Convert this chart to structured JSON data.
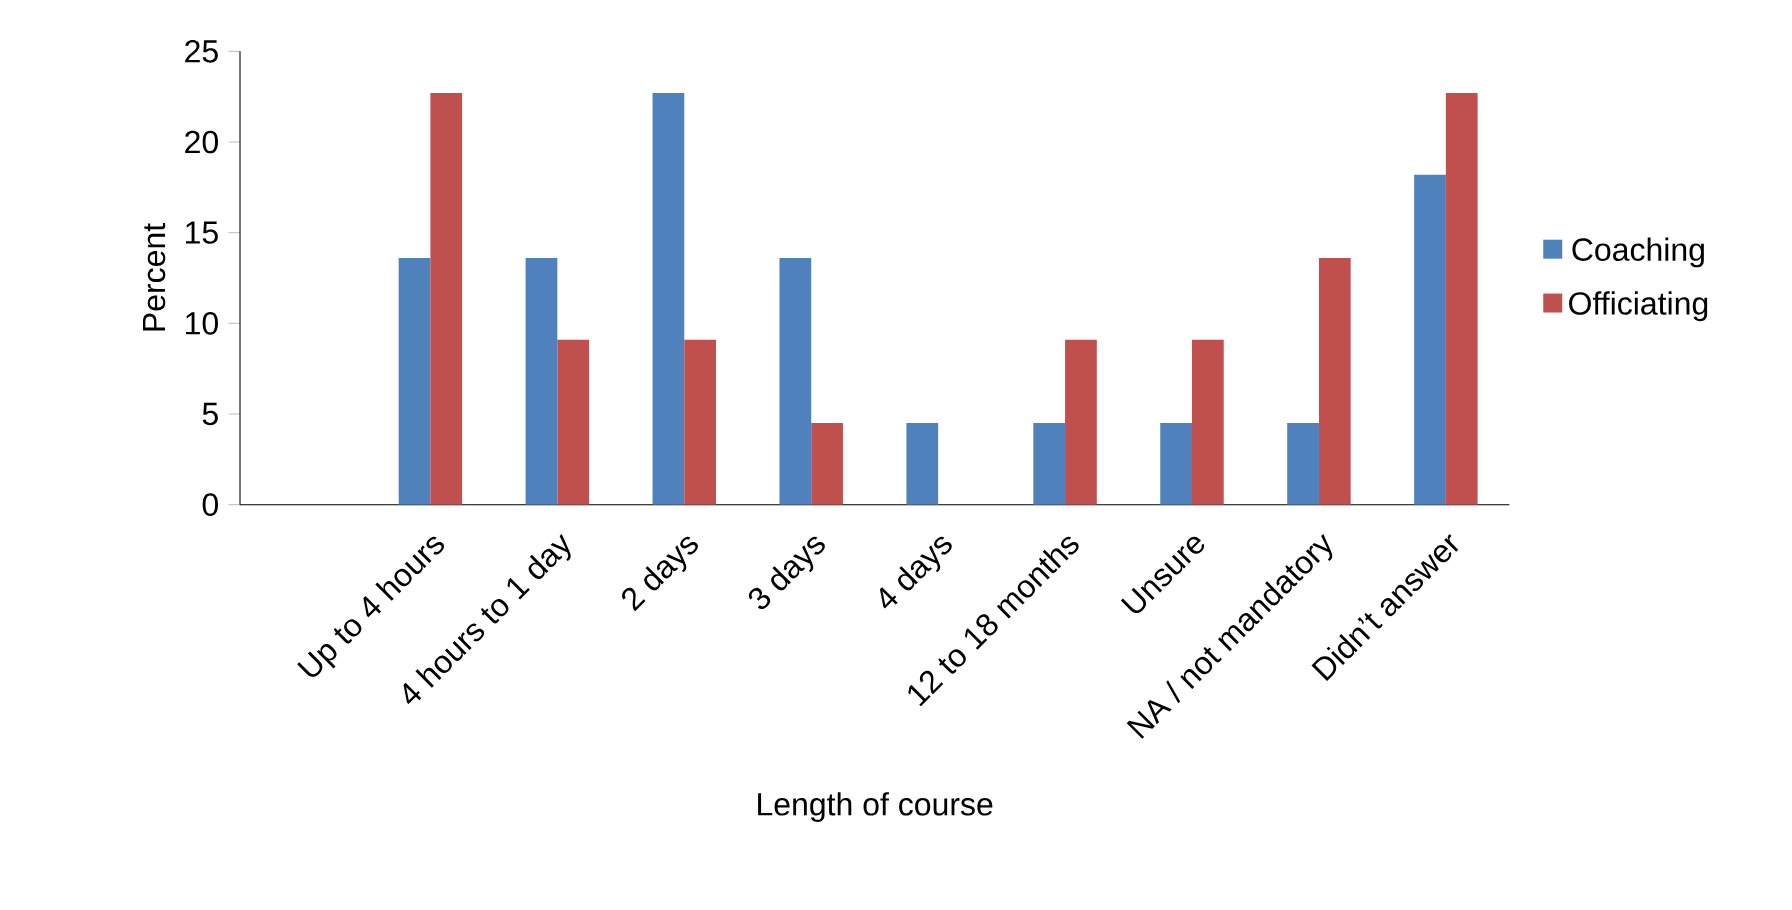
{
  "chart_data": {
    "type": "bar",
    "xlabel": "Length of course",
    "ylabel": "Percent",
    "categories": [
      null,
      "Up to 4 hours",
      "4 hours to 1 day",
      "2 days",
      "3 days",
      "4 days",
      "12 to 18 months",
      "Unsure",
      "NA / not mandatory",
      "Didn’t answer"
    ],
    "series": [
      {
        "name": "Coaching",
        "color": "#4f81bd",
        "values": [
          null,
          13.6,
          13.6,
          22.7,
          13.6,
          4.5,
          4.5,
          4.5,
          4.5,
          18.2
        ]
      },
      {
        "name": "Officiating",
        "color": "#c0504d",
        "values": [
          null,
          22.7,
          9.1,
          9.1,
          4.5,
          null,
          9.1,
          9.1,
          13.6,
          22.7
        ]
      }
    ],
    "ylim": [
      0,
      25
    ],
    "yticks": [
      0,
      5,
      10,
      15,
      20,
      25
    ],
    "legend": "right",
    "grid": false
  }
}
